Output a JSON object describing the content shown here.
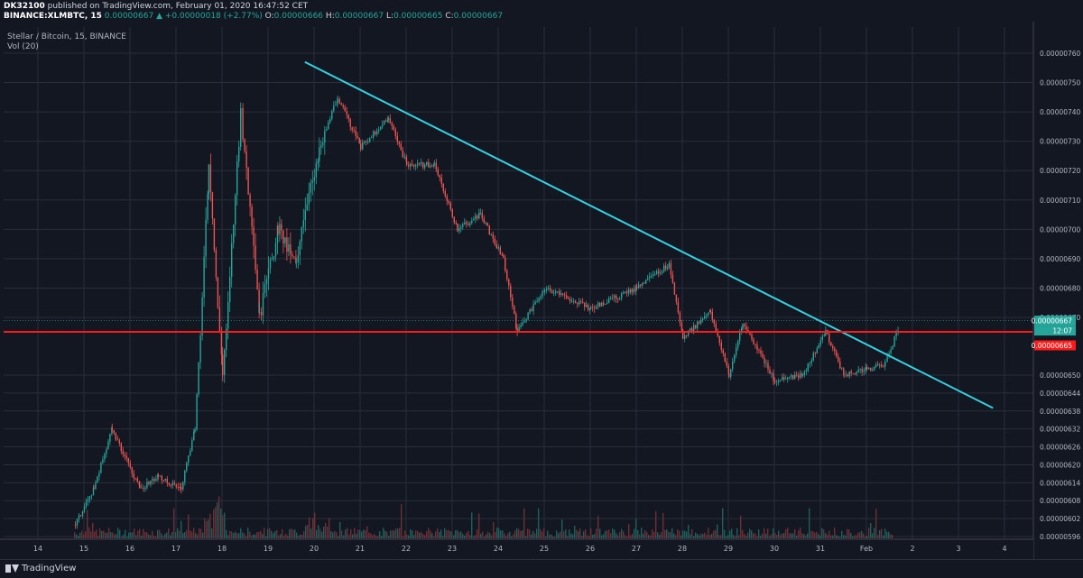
{
  "header": {
    "publisher": "DK32100",
    "published_text": "published on TradingView.com, February 01, 2020 16:47:52 CET",
    "symbol": "BINANCE:XLMBTC, 15",
    "last": "0.00000667",
    "change": "▲ +0.00000018 (+2.77%)",
    "o_label": "O:",
    "o": "0.00000666",
    "h_label": "H:",
    "h": "0.00000667",
    "l_label": "L:",
    "l": "0.00000665",
    "c_label": "C:",
    "c": "0.00000667"
  },
  "legend": {
    "title": "Stellar / Bitcoin, 15, BINANCE",
    "volume": "Vol (20)"
  },
  "footer": {
    "brand": "TradingView"
  },
  "colors": {
    "background": "#131722",
    "grid": "#2a2e39",
    "up": "#26a69a",
    "down": "#ef5350",
    "trendline": "#35d1e0",
    "hline": "#ff1a1a",
    "price_tag": "#26a69a"
  },
  "chart_data": {
    "type": "candlestick",
    "title": "Stellar / Bitcoin, 15, BINANCE",
    "y_ticks": [
      "0.00000760",
      "0.00000750",
      "0.00000740",
      "0.00000730",
      "0.00000720",
      "0.00000710",
      "0.00000700",
      "0.00000690",
      "0.00000680",
      "0.00000670",
      "0.00000650",
      "0.00000644",
      "0.00000638",
      "0.00000632",
      "0.00000626",
      "0.00000620",
      "0.00000614",
      "0.00000608",
      "0.00000602",
      "0.00000596"
    ],
    "x_ticks": [
      "14",
      "15",
      "16",
      "17",
      "18",
      "19",
      "20",
      "21",
      "22",
      "23",
      "24",
      "25",
      "26",
      "27",
      "28",
      "29",
      "30",
      "31",
      "Feb",
      "2",
      "3",
      "4"
    ],
    "price_labels": {
      "last": "0.00000667",
      "countdown": "12:07",
      "hline": "0.00000665"
    },
    "trendline": {
      "start": {
        "date": "Jan 20",
        "price": 7.57e-06
      },
      "end": {
        "date": "Feb 4",
        "price": 6.39e-06
      }
    },
    "horizontal_line": 6.65e-06,
    "close_path": [
      {
        "x": "Jan 14.8",
        "y": 6e-06
      },
      {
        "x": "Jan 15.2",
        "y": 6.12e-06
      },
      {
        "x": "Jan 15.6",
        "y": 6.32e-06
      },
      {
        "x": "Jan 16.2",
        "y": 6.12e-06
      },
      {
        "x": "Jan 16.6",
        "y": 6.16e-06
      },
      {
        "x": "Jan 17.1",
        "y": 6.12e-06
      },
      {
        "x": "Jan 17.4",
        "y": 6.32e-06
      },
      {
        "x": "Jan 17.7",
        "y": 7.2e-06
      },
      {
        "x": "Jan 18.0",
        "y": 6.5e-06
      },
      {
        "x": "Jan 18.4",
        "y": 7.4e-06
      },
      {
        "x": "Jan 18.8",
        "y": 6.7e-06
      },
      {
        "x": "Jan 19.2",
        "y": 7e-06
      },
      {
        "x": "Jan 19.6",
        "y": 6.9e-06
      },
      {
        "x": "Jan 20.1",
        "y": 7.28e-06
      },
      {
        "x": "Jan 20.5",
        "y": 7.45e-06
      },
      {
        "x": "Jan 21.0",
        "y": 7.28e-06
      },
      {
        "x": "Jan 21.6",
        "y": 7.38e-06
      },
      {
        "x": "Jan 22.0",
        "y": 7.22e-06
      },
      {
        "x": "Jan 22.6",
        "y": 7.22e-06
      },
      {
        "x": "Jan 23.1",
        "y": 7e-06
      },
      {
        "x": "Jan 23.6",
        "y": 7.05e-06
      },
      {
        "x": "Jan 24.1",
        "y": 6.9e-06
      },
      {
        "x": "Jan 24.4",
        "y": 6.65e-06
      },
      {
        "x": "Jan 25.0",
        "y": 6.8e-06
      },
      {
        "x": "Jan 26.0",
        "y": 6.73e-06
      },
      {
        "x": "Jan 27.0",
        "y": 6.8e-06
      },
      {
        "x": "Jan 27.7",
        "y": 6.88e-06
      },
      {
        "x": "Jan 28.0",
        "y": 6.63e-06
      },
      {
        "x": "Jan 28.6",
        "y": 6.72e-06
      },
      {
        "x": "Jan 29.0",
        "y": 6.5e-06
      },
      {
        "x": "Jan 29.3",
        "y": 6.68e-06
      },
      {
        "x": "Jan 30.0",
        "y": 6.48e-06
      },
      {
        "x": "Jan 30.6",
        "y": 6.5e-06
      },
      {
        "x": "Jan 31.1",
        "y": 6.65e-06
      },
      {
        "x": "Jan 31.5",
        "y": 6.5e-06
      },
      {
        "x": "Feb 1.0",
        "y": 6.52e-06
      },
      {
        "x": "Feb 1.4",
        "y": 6.54e-06
      },
      {
        "x": "Feb 1.7",
        "y": 6.67e-06
      }
    ]
  }
}
